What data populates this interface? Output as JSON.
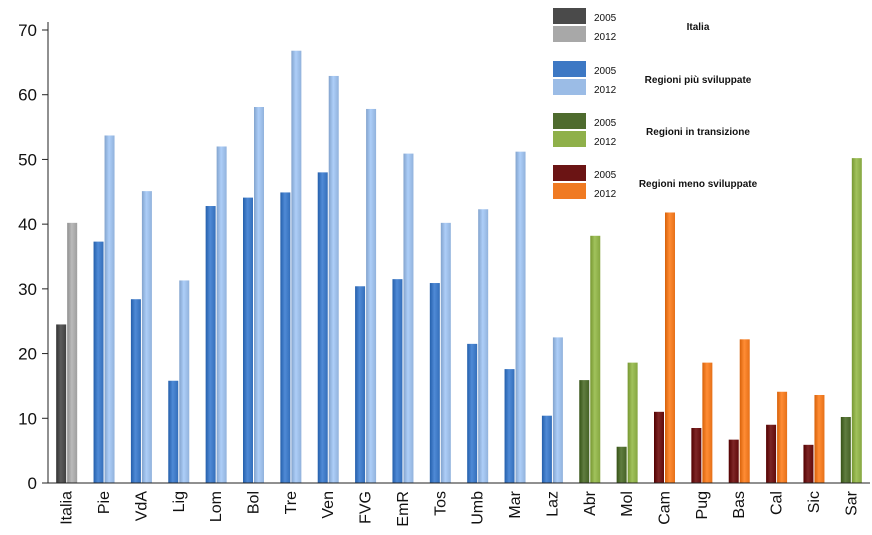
{
  "chart_data": {
    "type": "bar",
    "ylim": [
      0,
      70
    ],
    "yticks": [
      0,
      10,
      20,
      30,
      40,
      50,
      60,
      70
    ],
    "grid": false,
    "legend_position": "top-right",
    "years": [
      "2005",
      "2012"
    ],
    "groups": [
      {
        "name": "Italia",
        "color_2005": "#4a4a4a",
        "color_2012": "#a8a8a8"
      },
      {
        "name": "Regioni più sviluppate",
        "color_2005": "#3d78c4",
        "color_2012": "#9bbce6"
      },
      {
        "name": "Regioni in transizione",
        "color_2005": "#4e6b2e",
        "color_2012": "#8fb04a"
      },
      {
        "name": "Regioni meno sviluppate",
        "color_2005": "#6b1414",
        "color_2012": "#f07a22"
      }
    ],
    "categories": [
      {
        "label": "Italia",
        "group": 0,
        "v2005": 24.5,
        "v2012": 40.2
      },
      {
        "label": "Pie",
        "group": 1,
        "v2005": 37.3,
        "v2012": 53.7
      },
      {
        "label": "VdA",
        "group": 1,
        "v2005": 28.4,
        "v2012": 45.1
      },
      {
        "label": "Lig",
        "group": 1,
        "v2005": 15.8,
        "v2012": 31.3
      },
      {
        "label": "Lom",
        "group": 1,
        "v2005": 42.8,
        "v2012": 52.0
      },
      {
        "label": "Bol",
        "group": 1,
        "v2005": 44.1,
        "v2012": 58.1
      },
      {
        "label": "Tre",
        "group": 1,
        "v2005": 44.9,
        "v2012": 66.8
      },
      {
        "label": "Ven",
        "group": 1,
        "v2005": 48.0,
        "v2012": 62.9
      },
      {
        "label": "FVG",
        "group": 1,
        "v2005": 30.4,
        "v2012": 57.8
      },
      {
        "label": "EmR",
        "group": 1,
        "v2005": 31.5,
        "v2012": 50.9
      },
      {
        "label": "Tos",
        "group": 1,
        "v2005": 30.9,
        "v2012": 40.2
      },
      {
        "label": "Umb",
        "group": 1,
        "v2005": 21.5,
        "v2012": 42.3
      },
      {
        "label": "Mar",
        "group": 1,
        "v2005": 17.6,
        "v2012": 51.2
      },
      {
        "label": "Laz",
        "group": 1,
        "v2005": 10.4,
        "v2012": 22.5
      },
      {
        "label": "Abr",
        "group": 2,
        "v2005": 15.9,
        "v2012": 38.2
      },
      {
        "label": "Mol",
        "group": 2,
        "v2005": 5.6,
        "v2012": 18.6
      },
      {
        "label": "Cam",
        "group": 3,
        "v2005": 11.0,
        "v2012": 41.8
      },
      {
        "label": "Pug",
        "group": 3,
        "v2005": 8.5,
        "v2012": 18.6
      },
      {
        "label": "Bas",
        "group": 3,
        "v2005": 6.7,
        "v2012": 22.2
      },
      {
        "label": "Cal",
        "group": 3,
        "v2005": 9.0,
        "v2012": 14.1
      },
      {
        "label": "Sic",
        "group": 3,
        "v2005": 5.9,
        "v2012": 13.6
      },
      {
        "label": "Sar",
        "group": 2,
        "v2005": 10.2,
        "v2012": 50.2
      }
    ]
  }
}
